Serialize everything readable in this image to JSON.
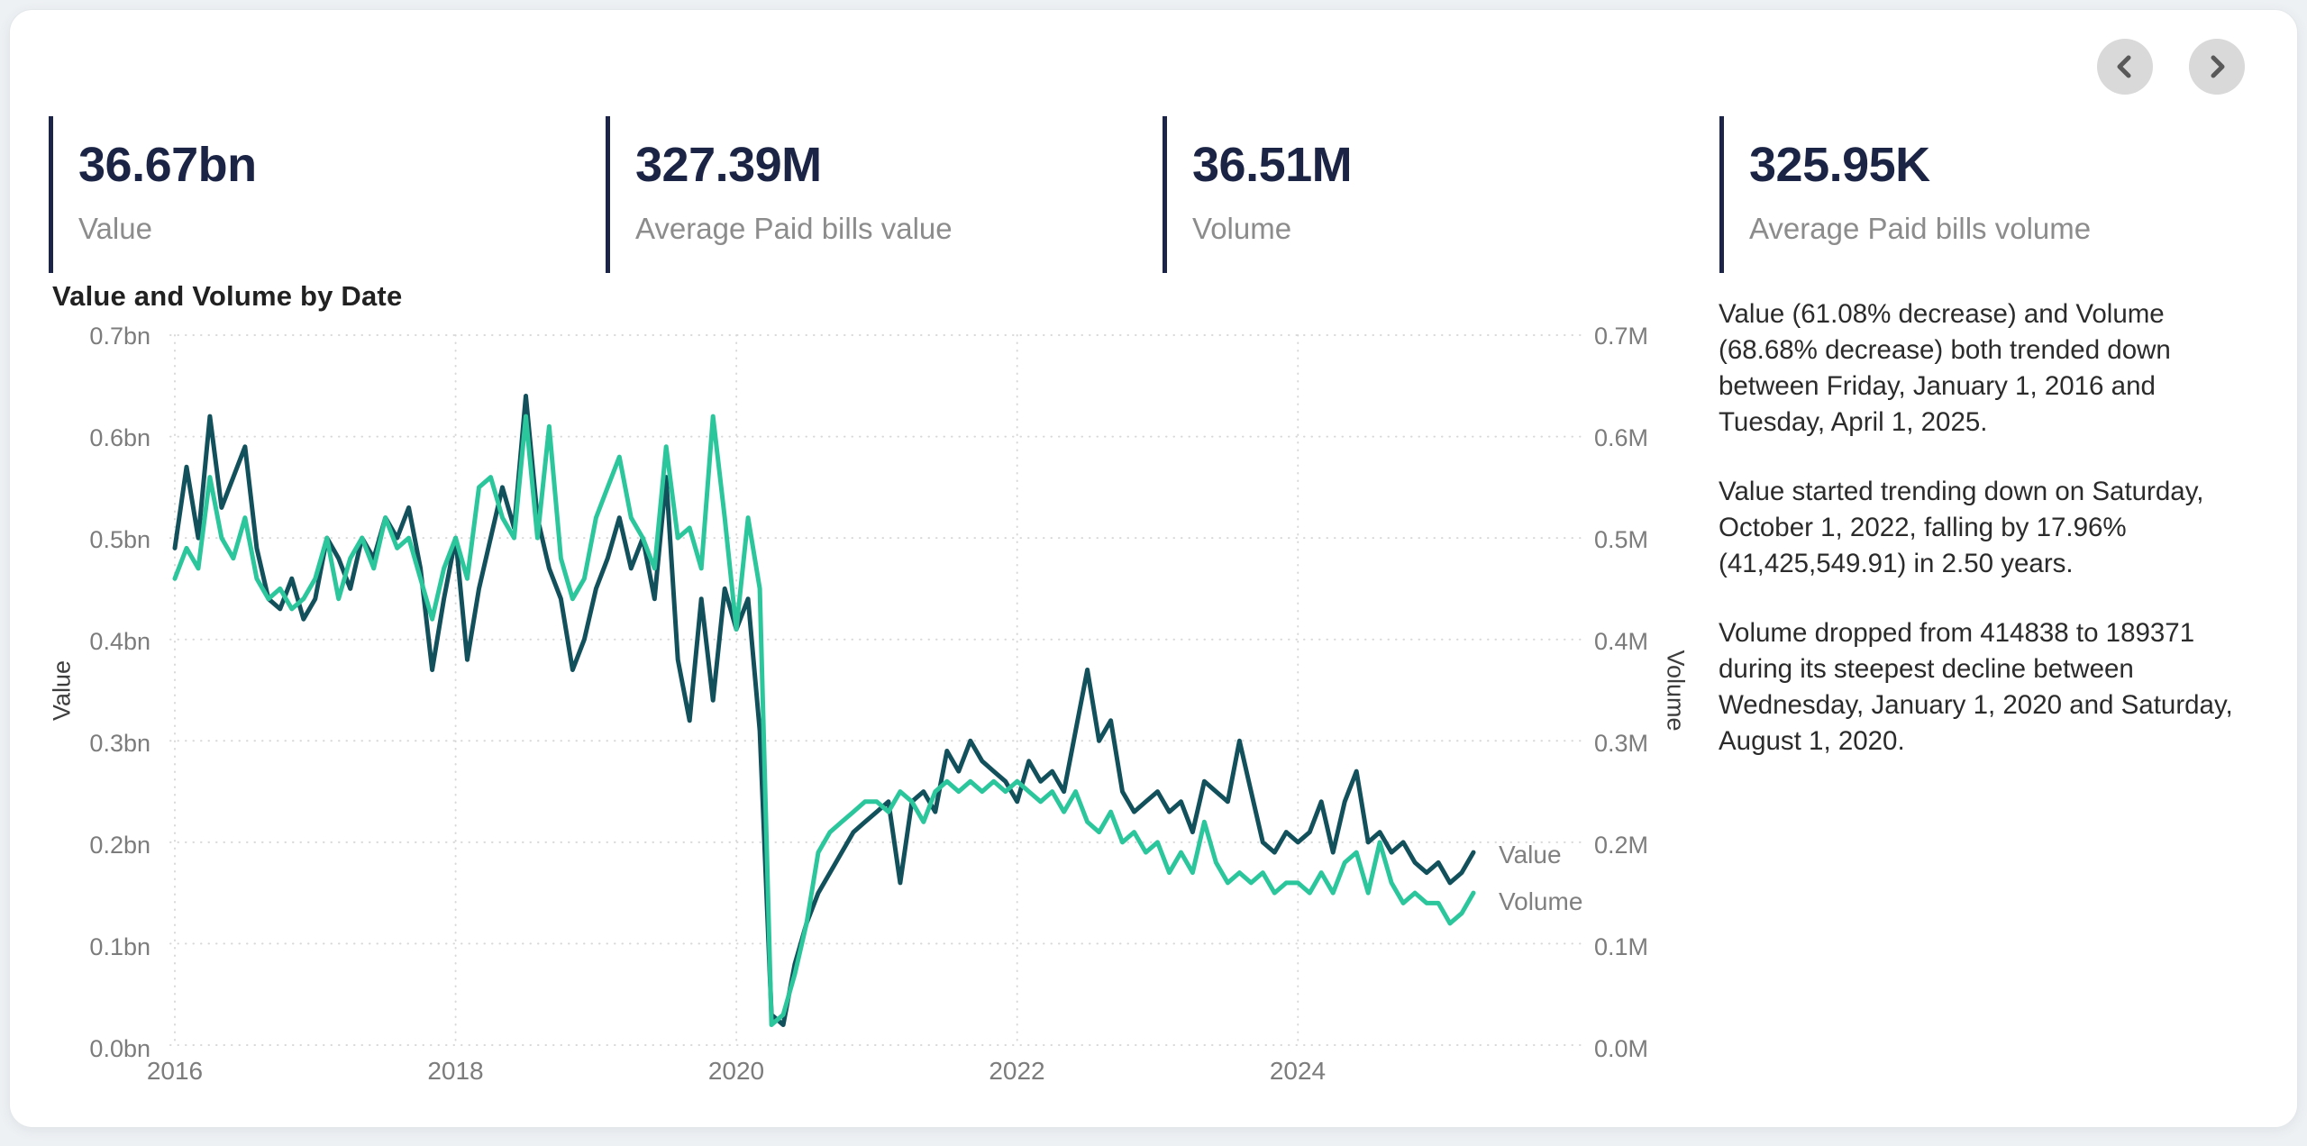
{
  "nav": {
    "prev_icon": "chevron-left-icon",
    "next_icon": "chevron-right-icon"
  },
  "kpis": [
    {
      "value": "36.67bn",
      "label": "Value"
    },
    {
      "value": "327.39M",
      "label": "Average Paid bills value"
    },
    {
      "value": "36.51M",
      "label": "Volume"
    },
    {
      "value": "325.95K",
      "label": "Average Paid bills volume"
    }
  ],
  "chart_data": {
    "type": "line",
    "title": "Value and Volume by Date",
    "x": {
      "start": "2016-01",
      "end": "2025-04",
      "interval": "month",
      "points": 112
    },
    "x_tick_labels": [
      "2016",
      "2018",
      "2020",
      "2022",
      "2024"
    ],
    "grid": "dotted",
    "legend_position": "line-end-labels",
    "left_axis": {
      "title": "Value",
      "unit": "bn",
      "range": [
        0,
        0.7
      ],
      "ticks": [
        "0.7bn",
        "0.6bn",
        "0.5bn",
        "0.4bn",
        "0.3bn",
        "0.2bn",
        "0.1bn",
        "0.0bn"
      ]
    },
    "right_axis": {
      "title": "Volume",
      "unit": "M",
      "range": [
        0,
        0.7
      ],
      "ticks": [
        "0.7M",
        "0.6M",
        "0.5M",
        "0.4M",
        "0.3M",
        "0.2M",
        "0.1M",
        "0.0M"
      ]
    },
    "series": [
      {
        "name": "Value",
        "axis": "left",
        "unit": "bn",
        "color": "#12515c",
        "values": [
          0.49,
          0.57,
          0.5,
          0.62,
          0.53,
          0.56,
          0.59,
          0.49,
          0.44,
          0.43,
          0.46,
          0.42,
          0.44,
          0.5,
          0.48,
          0.45,
          0.5,
          0.48,
          0.52,
          0.5,
          0.53,
          0.47,
          0.37,
          0.44,
          0.5,
          0.38,
          0.45,
          0.5,
          0.55,
          0.51,
          0.64,
          0.52,
          0.47,
          0.44,
          0.37,
          0.4,
          0.45,
          0.48,
          0.52,
          0.47,
          0.5,
          0.44,
          0.56,
          0.38,
          0.32,
          0.44,
          0.34,
          0.45,
          0.41,
          0.44,
          0.31,
          0.03,
          0.02,
          0.08,
          0.12,
          0.15,
          0.17,
          0.19,
          0.21,
          0.22,
          0.23,
          0.24,
          0.16,
          0.24,
          0.25,
          0.23,
          0.29,
          0.27,
          0.3,
          0.28,
          0.27,
          0.26,
          0.24,
          0.28,
          0.26,
          0.27,
          0.25,
          0.31,
          0.37,
          0.3,
          0.32,
          0.25,
          0.23,
          0.24,
          0.25,
          0.23,
          0.24,
          0.21,
          0.26,
          0.25,
          0.24,
          0.3,
          0.25,
          0.2,
          0.19,
          0.21,
          0.2,
          0.21,
          0.24,
          0.19,
          0.24,
          0.27,
          0.2,
          0.21,
          0.19,
          0.2,
          0.18,
          0.17,
          0.18,
          0.16,
          0.17,
          0.19
        ]
      },
      {
        "name": "Volume",
        "axis": "right",
        "unit": "M",
        "color": "#2cc69c",
        "values": [
          0.46,
          0.49,
          0.47,
          0.56,
          0.5,
          0.48,
          0.52,
          0.46,
          0.44,
          0.45,
          0.43,
          0.44,
          0.46,
          0.5,
          0.44,
          0.48,
          0.5,
          0.47,
          0.52,
          0.49,
          0.5,
          0.46,
          0.42,
          0.47,
          0.5,
          0.46,
          0.55,
          0.56,
          0.52,
          0.5,
          0.62,
          0.5,
          0.61,
          0.48,
          0.44,
          0.46,
          0.52,
          0.55,
          0.58,
          0.52,
          0.5,
          0.47,
          0.59,
          0.5,
          0.51,
          0.47,
          0.62,
          0.52,
          0.41,
          0.52,
          0.45,
          0.02,
          0.03,
          0.07,
          0.12,
          0.19,
          0.21,
          0.22,
          0.23,
          0.24,
          0.24,
          0.23,
          0.25,
          0.24,
          0.22,
          0.25,
          0.26,
          0.25,
          0.26,
          0.25,
          0.26,
          0.25,
          0.26,
          0.25,
          0.24,
          0.25,
          0.23,
          0.25,
          0.22,
          0.21,
          0.23,
          0.2,
          0.21,
          0.19,
          0.2,
          0.17,
          0.19,
          0.17,
          0.22,
          0.18,
          0.16,
          0.17,
          0.16,
          0.17,
          0.15,
          0.16,
          0.16,
          0.15,
          0.17,
          0.15,
          0.18,
          0.19,
          0.15,
          0.2,
          0.16,
          0.14,
          0.15,
          0.14,
          0.14,
          0.12,
          0.13,
          0.15
        ]
      }
    ]
  },
  "narrative": {
    "paragraphs": [
      "Value (61.08% decrease) and Volume (68.68% decrease) both trended down between Friday, January 1, 2016 and Tuesday, April 1, 2025.",
      "Value started trending down on Saturday, October 1, 2022, falling by 17.96% (41,425,549.91) in 2.50 years.",
      "Volume dropped from 414838 to 189371 during its steepest decline between Wednesday, January 1, 2020 and Saturday, August 1, 2020."
    ]
  },
  "colors": {
    "value_series": "#12515c",
    "volume_series": "#2cc69c",
    "kpi_accent": "#1c2547",
    "gridline": "#d8d8d8",
    "page_background": "#eef1f4",
    "card_background": "#ffffff"
  }
}
